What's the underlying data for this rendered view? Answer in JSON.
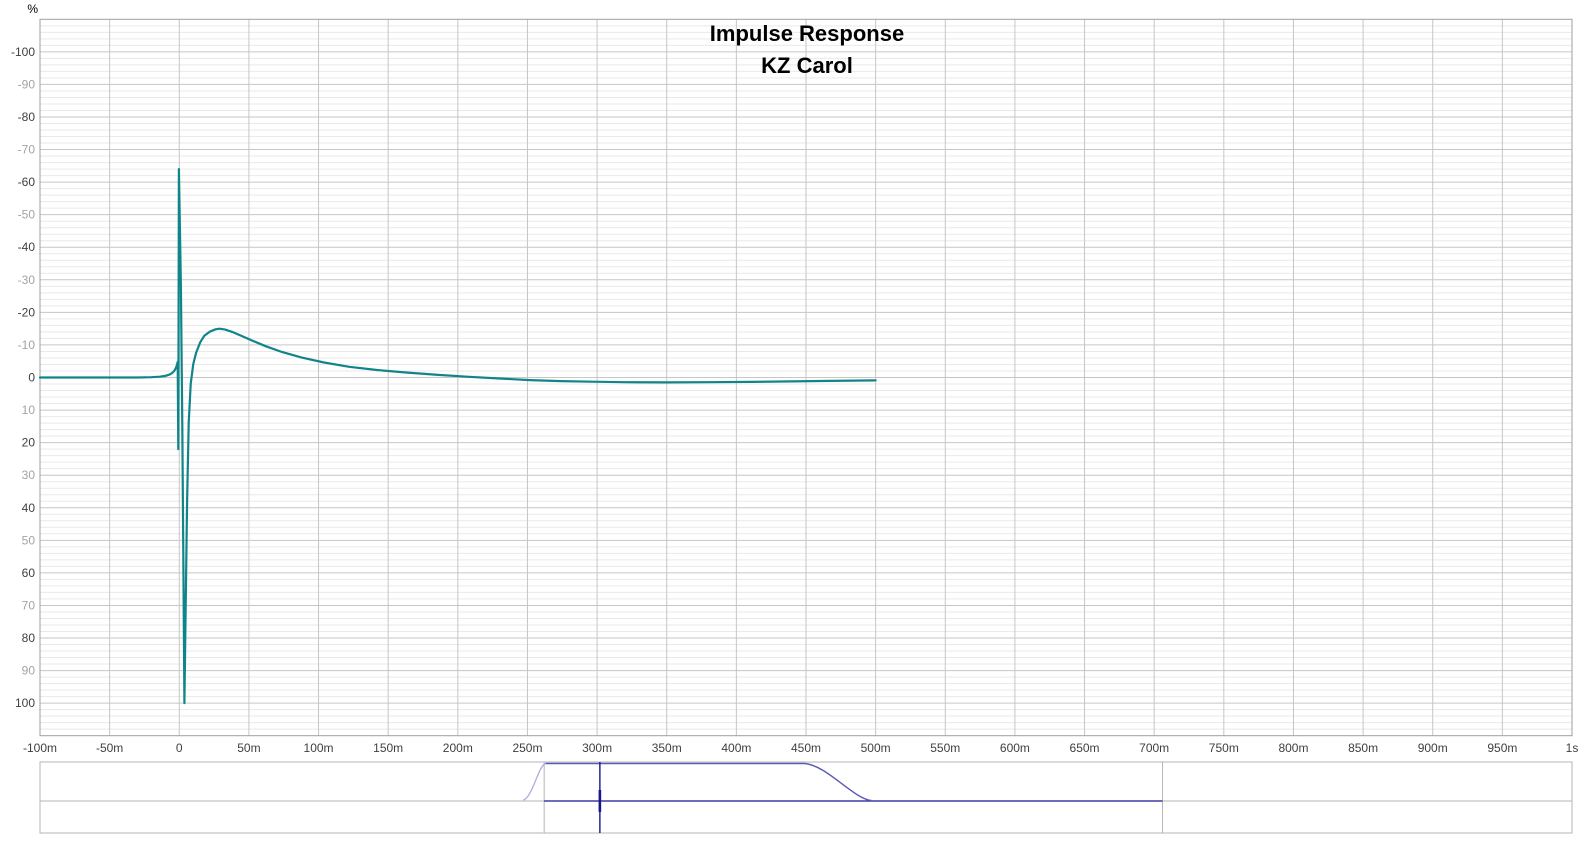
{
  "chart_data": {
    "type": "line",
    "title": "Impulse Response",
    "subtitle": "KZ Carol",
    "xlabel": "",
    "ylabel": "%",
    "xlim_ms": [
      -100,
      1000
    ],
    "ylim_pct": [
      -110,
      110
    ],
    "grid": {
      "y_minor_step_pct": 2,
      "y_major_step_pct": 10,
      "x_step_ms": 50,
      "x_minor": false
    },
    "legend": "none",
    "x_ticks": [
      {
        "v": -100,
        "label": "-100m"
      },
      {
        "v": -50,
        "label": "-50m"
      },
      {
        "v": 0,
        "label": "0"
      },
      {
        "v": 50,
        "label": "50m"
      },
      {
        "v": 100,
        "label": "100m"
      },
      {
        "v": 150,
        "label": "150m"
      },
      {
        "v": 200,
        "label": "200m"
      },
      {
        "v": 250,
        "label": "250m"
      },
      {
        "v": 300,
        "label": "300m"
      },
      {
        "v": 350,
        "label": "350m"
      },
      {
        "v": 400,
        "label": "400m"
      },
      {
        "v": 450,
        "label": "450m"
      },
      {
        "v": 500,
        "label": "500m"
      },
      {
        "v": 550,
        "label": "550m"
      },
      {
        "v": 600,
        "label": "600m"
      },
      {
        "v": 650,
        "label": "650m"
      },
      {
        "v": 700,
        "label": "700m"
      },
      {
        "v": 750,
        "label": "750m"
      },
      {
        "v": 800,
        "label": "800m"
      },
      {
        "v": 850,
        "label": "850m"
      },
      {
        "v": 900,
        "label": "900m"
      },
      {
        "v": 950,
        "label": "950m"
      },
      {
        "v": 1000,
        "label": "1s"
      }
    ],
    "y_ticks": [
      {
        "v": 100,
        "label": "100",
        "dark": true
      },
      {
        "v": 90,
        "label": "90",
        "dark": false
      },
      {
        "v": 80,
        "label": "80",
        "dark": true
      },
      {
        "v": 70,
        "label": "70",
        "dark": false
      },
      {
        "v": 60,
        "label": "60",
        "dark": true
      },
      {
        "v": 50,
        "label": "50",
        "dark": false
      },
      {
        "v": 40,
        "label": "40",
        "dark": true
      },
      {
        "v": 30,
        "label": "30",
        "dark": false
      },
      {
        "v": 20,
        "label": "20",
        "dark": true
      },
      {
        "v": 10,
        "label": "10",
        "dark": false
      },
      {
        "v": 0,
        "label": "0",
        "dark": true
      },
      {
        "v": -10,
        "label": "-10",
        "dark": false
      },
      {
        "v": -20,
        "label": "-20",
        "dark": true
      },
      {
        "v": -30,
        "label": "-30",
        "dark": false
      },
      {
        "v": -40,
        "label": "-40",
        "dark": true
      },
      {
        "v": -50,
        "label": "-50",
        "dark": false
      },
      {
        "v": -60,
        "label": "-60",
        "dark": true
      },
      {
        "v": -70,
        "label": "-70",
        "dark": false
      },
      {
        "v": -80,
        "label": "-80",
        "dark": true
      },
      {
        "v": -90,
        "label": "-90",
        "dark": false
      },
      {
        "v": -100,
        "label": "-100",
        "dark": true
      }
    ],
    "series": [
      {
        "name": "KZ Carol impulse response",
        "color": "#108589",
        "x_unit": "ms",
        "y_unit": "%",
        "points": [
          [
            -100,
            0
          ],
          [
            -60,
            0
          ],
          [
            -40,
            0
          ],
          [
            -30,
            0
          ],
          [
            -20,
            -0.1
          ],
          [
            -14,
            -0.25
          ],
          [
            -10,
            -0.5
          ],
          [
            -7,
            -0.9
          ],
          [
            -5,
            -1.4
          ],
          [
            -3.5,
            -2.1
          ],
          [
            -2.5,
            -2.9
          ],
          [
            -1.7,
            -3.8
          ],
          [
            -1.1,
            -4.8
          ],
          [
            -0.7,
            22
          ],
          [
            -0.3,
            -64
          ],
          [
            1.2,
            -28
          ],
          [
            2.2,
            15
          ],
          [
            3,
            62
          ],
          [
            3.7,
            100
          ],
          [
            4.6,
            70
          ],
          [
            5.6,
            38
          ],
          [
            6.8,
            14
          ],
          [
            8.2,
            2
          ],
          [
            10,
            -4
          ],
          [
            12,
            -7.5
          ],
          [
            15,
            -10.8
          ],
          [
            18,
            -12.8
          ],
          [
            22,
            -14.1
          ],
          [
            26,
            -14.8
          ],
          [
            29,
            -15
          ],
          [
            33,
            -14.7
          ],
          [
            38,
            -14
          ],
          [
            44,
            -12.9
          ],
          [
            52,
            -11.4
          ],
          [
            62,
            -9.6
          ],
          [
            74,
            -7.8
          ],
          [
            88,
            -6.1
          ],
          [
            104,
            -4.6
          ],
          [
            122,
            -3.3
          ],
          [
            142,
            -2.3
          ],
          [
            164,
            -1.5
          ],
          [
            186,
            -0.8
          ],
          [
            208,
            -0.2
          ],
          [
            230,
            0.3
          ],
          [
            252,
            0.8
          ],
          [
            274,
            1.1
          ],
          [
            296,
            1.3
          ],
          [
            320,
            1.45
          ],
          [
            350,
            1.5
          ],
          [
            380,
            1.45
          ],
          [
            410,
            1.35
          ],
          [
            440,
            1.2
          ],
          [
            468,
            1.05
          ],
          [
            500,
            0.9
          ]
        ]
      }
    ],
    "overview": {
      "marker_ms": 302,
      "data_start_ms": 262,
      "data_end_ms": 706,
      "window_ramp_start_ms": 247,
      "window_flat_start_ms": 263,
      "window_flat_end_ms": 449,
      "window_fall_end_ms": 497
    }
  },
  "colors": {
    "background": "#ffffff",
    "trace": "#108589",
    "grid_minor": "#e9e9e9",
    "grid_major": "#c6c6c6",
    "plot_border": "#9f9f9f",
    "tick_dark": "#3f3f3f",
    "tick_light": "#a3a3a3",
    "title": "#3c3c3c",
    "overview_frame": "#b5b5b5",
    "overview_window": "#5b5bb5",
    "overview_ramp": "#b0abe0",
    "overview_trace": "#16168f",
    "overview_marker": "#16168f"
  }
}
